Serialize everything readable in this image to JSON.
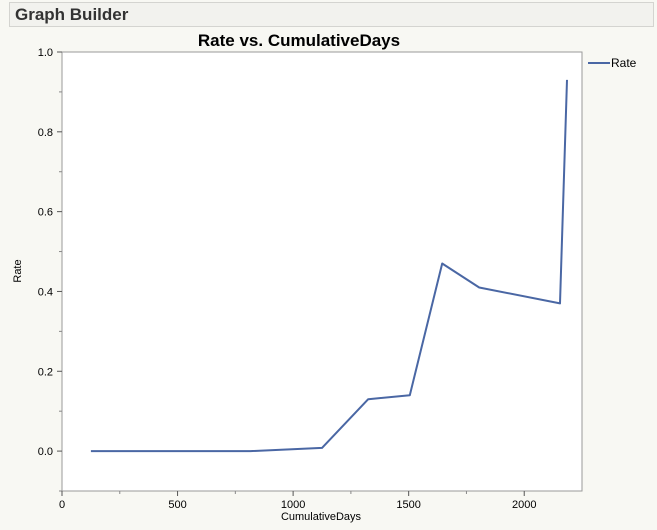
{
  "header": {
    "title": "Graph Builder"
  },
  "colors": {
    "series": "#4a67a4",
    "frame": "#9a9a9a",
    "plot_bg": "#ffffff"
  },
  "chart_data": {
    "type": "line",
    "title": "Rate vs. CumulativeDays",
    "xlabel": "CumulativeDays",
    "ylabel": "Rate",
    "xlim": [
      0,
      2250
    ],
    "ylim": [
      -0.1,
      1.0
    ],
    "xticks": [
      0,
      500,
      1000,
      1500,
      2000
    ],
    "yticks": [
      0.0,
      0.2,
      0.4,
      0.6,
      0.8,
      1.0
    ],
    "ytick_labels": [
      "0.0",
      "0.2",
      "0.4",
      "0.6",
      "0.8",
      "1.0"
    ],
    "grid": false,
    "legend_position": "right",
    "series": [
      {
        "name": "Rate",
        "x": [
          125,
          815,
          1125,
          1325,
          1505,
          1645,
          1805,
          2155,
          2185
        ],
        "y": [
          0.0,
          0.0,
          0.008,
          0.13,
          0.14,
          0.47,
          0.41,
          0.37,
          0.93
        ]
      }
    ]
  }
}
